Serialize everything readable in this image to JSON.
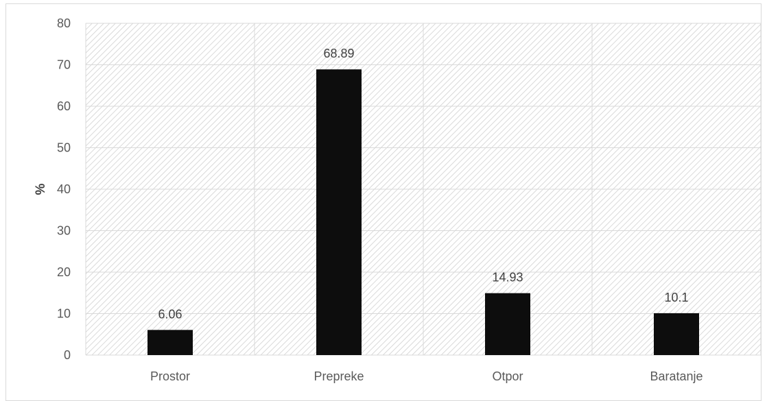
{
  "chart_data": {
    "type": "bar",
    "categories": [
      "Prostor",
      "Prepreke",
      "Otpor",
      "Baratanje"
    ],
    "values": [
      6.06,
      68.89,
      14.93,
      10.1
    ],
    "value_labels": [
      "6.06",
      "68.89",
      "14.93",
      "10.1"
    ],
    "title": "",
    "xlabel": "",
    "ylabel": "%",
    "ylim": [
      0,
      80
    ],
    "yticks": [
      0,
      10,
      20,
      30,
      40,
      50,
      60,
      70,
      80
    ],
    "grid": true,
    "legend": "none",
    "bar_color": "#0d0d0d",
    "background_pattern": "diagonal-hatch"
  }
}
